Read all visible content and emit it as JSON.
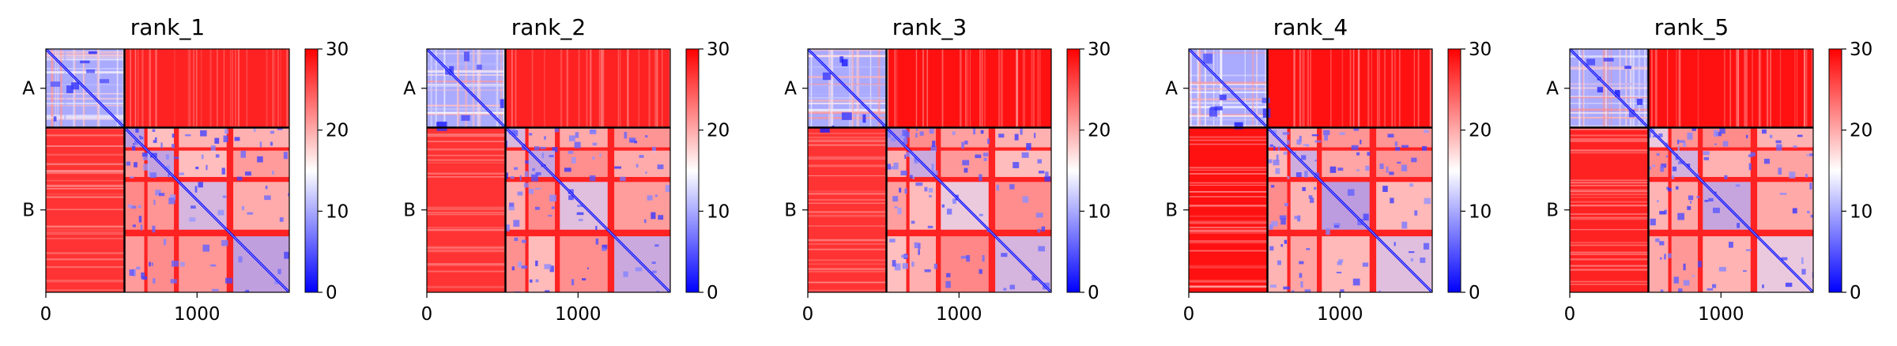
{
  "chart_data": [
    {
      "type": "heatmap",
      "title": "rank_1",
      "xlabel": "",
      "ylabel": "",
      "x_ticks": [
        0,
        1000
      ],
      "y_tick_labels": [
        "A",
        "B"
      ],
      "chain_lengths": [
        520,
        1090
      ],
      "xlim": [
        0,
        1610
      ],
      "colorbar": {
        "range": [
          0,
          30
        ],
        "ticks": [
          0,
          10,
          20,
          30
        ],
        "colormap": "bwr"
      },
      "pae_summary": {
        "A_intra": 6,
        "A_B": 28,
        "B_A": 27,
        "B_intra": 22
      }
    },
    {
      "type": "heatmap",
      "title": "rank_2",
      "xlabel": "",
      "ylabel": "",
      "x_ticks": [
        0,
        1000
      ],
      "y_tick_labels": [
        "A",
        "B"
      ],
      "chain_lengths": [
        520,
        1090
      ],
      "xlim": [
        0,
        1610
      ],
      "colorbar": {
        "range": [
          0,
          30
        ],
        "ticks": [
          0,
          10,
          20,
          30
        ],
        "colormap": "bwr"
      },
      "pae_summary": {
        "A_intra": 6,
        "A_B": 28,
        "B_A": 27,
        "B_intra": 22
      }
    },
    {
      "type": "heatmap",
      "title": "rank_3",
      "xlabel": "",
      "ylabel": "",
      "x_ticks": [
        0,
        1000
      ],
      "y_tick_labels": [
        "A",
        "B"
      ],
      "chain_lengths": [
        520,
        1090
      ],
      "xlim": [
        0,
        1610
      ],
      "colorbar": {
        "range": [
          0,
          30
        ],
        "ticks": [
          0,
          10,
          20,
          30
        ],
        "colormap": "bwr"
      },
      "pae_summary": {
        "A_intra": 6,
        "A_B": 29,
        "B_A": 27,
        "B_intra": 22
      }
    },
    {
      "type": "heatmap",
      "title": "rank_4",
      "xlabel": "",
      "ylabel": "",
      "x_ticks": [
        0,
        1000
      ],
      "y_tick_labels": [
        "A",
        "B"
      ],
      "chain_lengths": [
        520,
        1090
      ],
      "xlim": [
        0,
        1610
      ],
      "colorbar": {
        "range": [
          0,
          30
        ],
        "ticks": [
          0,
          10,
          20,
          30
        ],
        "colormap": "bwr"
      },
      "pae_summary": {
        "A_intra": 6,
        "A_B": 29,
        "B_A": 29,
        "B_intra": 22
      }
    },
    {
      "type": "heatmap",
      "title": "rank_5",
      "xlabel": "",
      "ylabel": "",
      "x_ticks": [
        0,
        1000
      ],
      "y_tick_labels": [
        "A",
        "B"
      ],
      "chain_lengths": [
        520,
        1090
      ],
      "xlim": [
        0,
        1610
      ],
      "colorbar": {
        "range": [
          0,
          30
        ],
        "ticks": [
          0,
          10,
          20,
          30
        ],
        "colormap": "bwr"
      },
      "pae_summary": {
        "A_intra": 6,
        "A_B": 29,
        "B_A": 28,
        "B_intra": 22
      }
    }
  ]
}
